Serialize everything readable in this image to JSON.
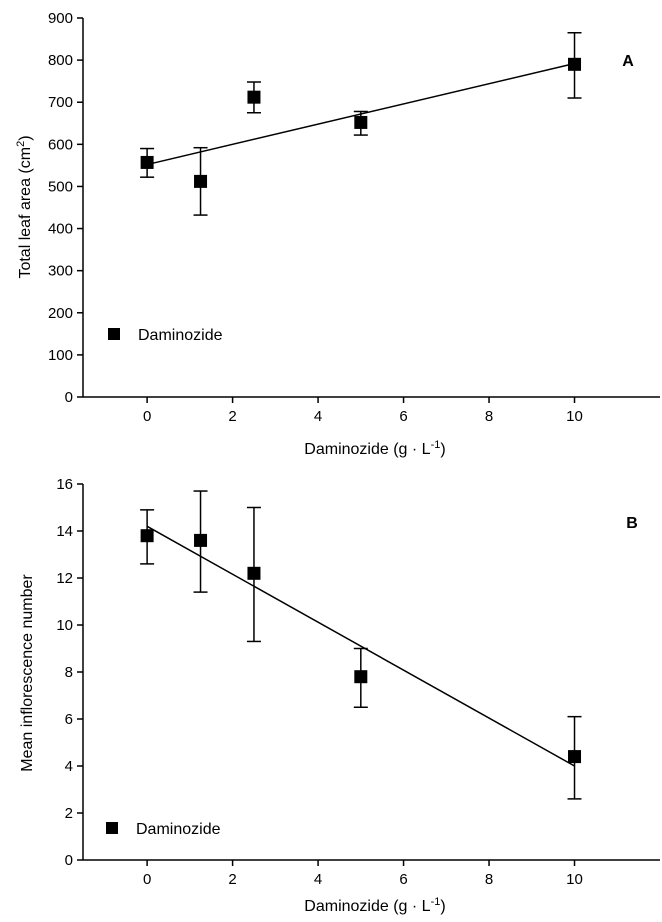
{
  "chart_data": [
    {
      "type": "scatter",
      "panel_label": "A",
      "xlabel_main": "Daminozide (g · L",
      "xlabel_sup": "-1",
      "xlabel_end": ")",
      "ylabel_main": "Total leaf area (cm",
      "ylabel_sup": "2",
      "ylabel_end": ")",
      "xlim": [
        -1.5,
        12
      ],
      "ylim": [
        0,
        900
      ],
      "xticks": [
        "0",
        "2",
        "4",
        "6",
        "8",
        "10"
      ],
      "xtick_values": [
        0,
        2,
        4,
        6,
        8,
        10
      ],
      "yticks": [
        "0",
        "100",
        "200",
        "300",
        "400",
        "500",
        "600",
        "700",
        "800",
        "900"
      ],
      "ytick_values": [
        0,
        100,
        200,
        300,
        400,
        500,
        600,
        700,
        800,
        900
      ],
      "series": [
        {
          "name": "Daminozide",
          "x": [
            0,
            1.25,
            2.5,
            5,
            10
          ],
          "y": [
            557,
            512,
            712,
            652,
            790
          ],
          "error_low": [
            522,
            432,
            675,
            622,
            710
          ],
          "error_high": [
            590,
            592,
            748,
            678,
            865
          ]
        }
      ],
      "fit_line": {
        "x": [
          0,
          10
        ],
        "y": [
          552,
          792
        ]
      },
      "legend_position": "bottom-left"
    },
    {
      "type": "scatter",
      "panel_label": "B",
      "xlabel_main": "Daminozide (g · L",
      "xlabel_sup": "-1",
      "xlabel_end": ")",
      "ylabel_main": "Mean inflorescence number",
      "ylabel_sup": "",
      "ylabel_end": "",
      "xlim": [
        -1.5,
        12
      ],
      "ylim": [
        0,
        16
      ],
      "xticks": [
        "0",
        "2",
        "4",
        "6",
        "8",
        "10"
      ],
      "xtick_values": [
        0,
        2,
        4,
        6,
        8,
        10
      ],
      "yticks": [
        "0",
        "2",
        "4",
        "6",
        "8",
        "10",
        "12",
        "14",
        "16"
      ],
      "ytick_values": [
        0,
        2,
        4,
        6,
        8,
        10,
        12,
        14,
        16
      ],
      "series": [
        {
          "name": "Daminozide",
          "x": [
            0,
            1.25,
            2.5,
            5,
            10
          ],
          "y": [
            13.8,
            13.6,
            12.2,
            7.8,
            4.4
          ],
          "error_low": [
            12.6,
            11.4,
            9.3,
            6.5,
            2.6
          ],
          "error_high": [
            14.9,
            15.7,
            15.0,
            9.0,
            6.1
          ]
        }
      ],
      "fit_line": {
        "x": [
          0,
          10
        ],
        "y": [
          14.2,
          4.0
        ]
      },
      "legend_position": "bottom-left"
    }
  ]
}
